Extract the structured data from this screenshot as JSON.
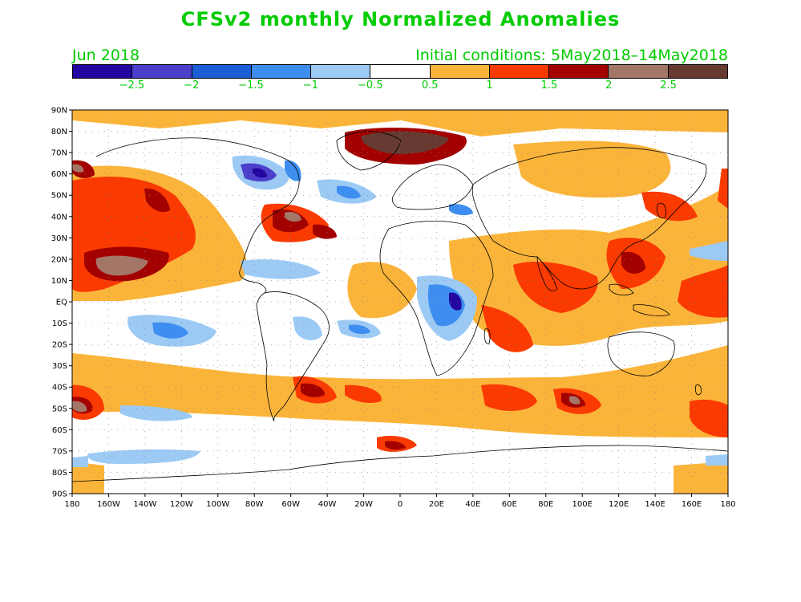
{
  "title": "CFSv2 monthly Normalized Anomalies",
  "subtitle_left": "Jun 2018",
  "subtitle_right": "Initial conditions: 5May2018–14May2018",
  "colorbar": {
    "colors": [
      "#23069f",
      "#4b3fcc",
      "#1c5ed6",
      "#3d8ef0",
      "#9ccaf5",
      "#ffffff",
      "#fbb43a",
      "#fa3a00",
      "#a30000",
      "#a47668",
      "#663a30"
    ],
    "labels": [
      "−2.5",
      "−2",
      "−1.5",
      "−1",
      "−0.5",
      "0.5",
      "1",
      "1.5",
      "2",
      "2.5"
    ]
  },
  "map": {
    "lon_labels": [
      "180",
      "160W",
      "140W",
      "120W",
      "100W",
      "80W",
      "60W",
      "40W",
      "20W",
      "0",
      "20E",
      "40E",
      "60E",
      "80E",
      "100E",
      "120E",
      "140E",
      "160E",
      "180"
    ],
    "lat_labels": [
      "90N",
      "80N",
      "70N",
      "60N",
      "50N",
      "40N",
      "30N",
      "20N",
      "10N",
      "EQ",
      "10S",
      "20S",
      "30S",
      "40S",
      "50S",
      "60S",
      "70S",
      "80S",
      "90S"
    ],
    "lon_range": [
      -180,
      180
    ],
    "lat_range": [
      -90,
      90
    ],
    "gridlines": "dotted",
    "field": "normalized anomaly, shaded"
  }
}
